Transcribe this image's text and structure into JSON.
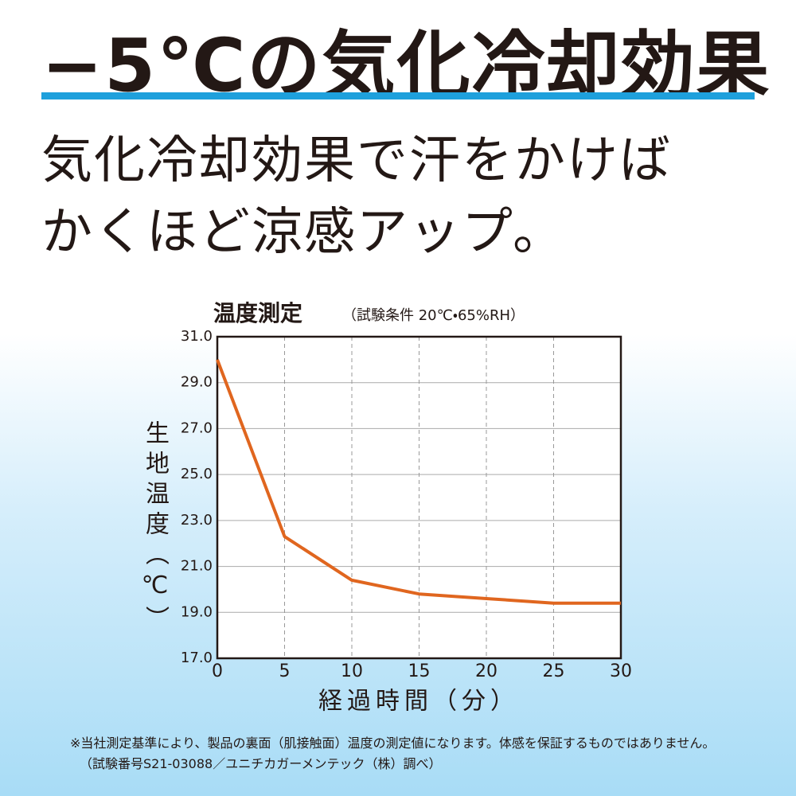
{
  "headline": "−5℃の気化冷却効果",
  "subheadline": [
    "気化冷却効果で汗をかけば",
    "かくほど涼感アップ。"
  ],
  "footnotes": [
    "※当社測定基準により、製品の裏面（肌接触面）温度の測定値になります。体感を保証するものではありません。",
    "（試験番号S21-03088／ユニチカガーメンテック（株）調べ）"
  ],
  "chart_data": {
    "type": "line",
    "title": "温度測定",
    "subtitle": "（試験条件 20℃・65%RH）",
    "x_label": "経過時間（分）",
    "y_label": "生地温度（℃）",
    "x": [
      0,
      5,
      10,
      15,
      20,
      25,
      30
    ],
    "series": [
      {
        "color": "#e0661f",
        "values": [
          30.0,
          22.3,
          20.4,
          19.8,
          19.6,
          19.4,
          19.4
        ]
      }
    ],
    "xlim": [
      0,
      30
    ],
    "xticks": [
      0,
      5,
      10,
      15,
      20,
      25,
      30
    ],
    "ylim": [
      17,
      31
    ],
    "yticks": [
      {
        "value": 17,
        "label": "17.0"
      },
      {
        "value": 19,
        "label": "19.0"
      },
      {
        "value": 21,
        "label": "21.0"
      },
      {
        "value": 23,
        "label": "23.0"
      },
      {
        "value": 25,
        "label": "25.0"
      },
      {
        "value": 27,
        "label": "27.0"
      },
      {
        "value": 29,
        "label": "29.0"
      },
      {
        "value": 31,
        "label": "31.0"
      }
    ],
    "grid": true
  }
}
